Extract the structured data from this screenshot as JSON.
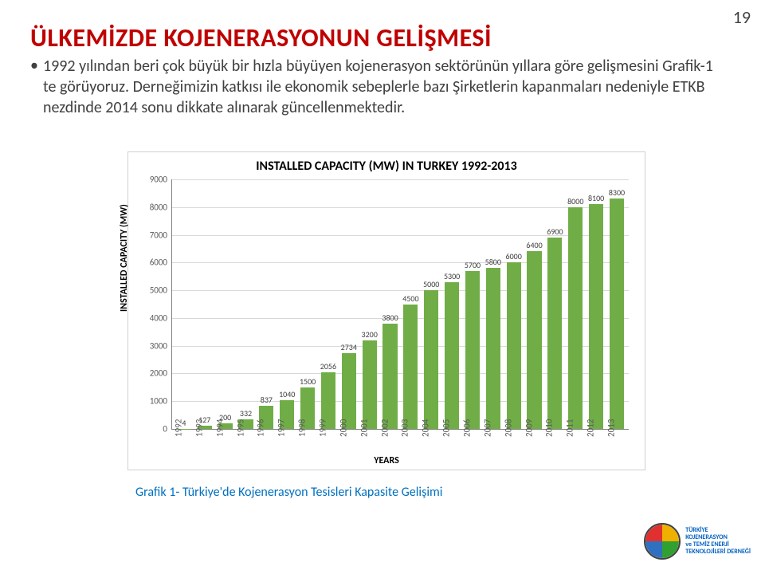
{
  "page_number": "19",
  "title": "ÜLKEMİZDE KOJENERASYONUN GELİŞMESİ",
  "body_text": "1992 yılından beri çok büyük bir hızla büyüyen kojenerasyon sektörünün yıllara göre gelişmesini Grafik-1 te görüyoruz. Derneğimizin katkısı ile ekonomik sebeplerle bazı Şirketlerin kapanmaları nedeniyle ETKB nezdinde 2014 sonu dikkate alınarak güncellenmektedir.",
  "chart": {
    "type": "bar",
    "title": "INSTALLED CAPACITY (MW) IN TURKEY 1992-2013",
    "xlabel": "YEARS",
    "ylabel": "INSTALLED CAPACITY (MW)",
    "ylim": [
      0,
      9000
    ],
    "ytick_step": 1000,
    "categories": [
      "1992",
      "1993",
      "1994",
      "1995",
      "1996",
      "1997",
      "1998",
      "1999",
      "2000",
      "2001",
      "2002",
      "2003",
      "2004",
      "2005",
      "2006",
      "2007",
      "2008",
      "2009",
      "2010",
      "2011",
      "2012",
      "2013"
    ],
    "values": [
      4,
      127,
      200,
      332,
      837,
      1040,
      1500,
      2056,
      2734,
      3200,
      3800,
      4500,
      5000,
      5300,
      5700,
      5800,
      6000,
      6400,
      6900,
      8000,
      8100,
      8300
    ],
    "bar_color": "#70ad47",
    "background_color": "#ffffff",
    "grid_color": "#d9d9d9",
    "axis_color": "#808080",
    "label_fontsize": 12,
    "title_fontsize": 16,
    "bar_width": 0.7
  },
  "caption": "Grafik 1- Türkiye'de Kojenerasyon Tesisleri Kapasite Gelişimi",
  "logo": {
    "line1": "TÜRKİYE",
    "line2": "KOJENERASYON",
    "line3": "ve TEMİZ ENERJİ",
    "line4": "TEKNOLOJİLERİ DERNEĞİ"
  }
}
